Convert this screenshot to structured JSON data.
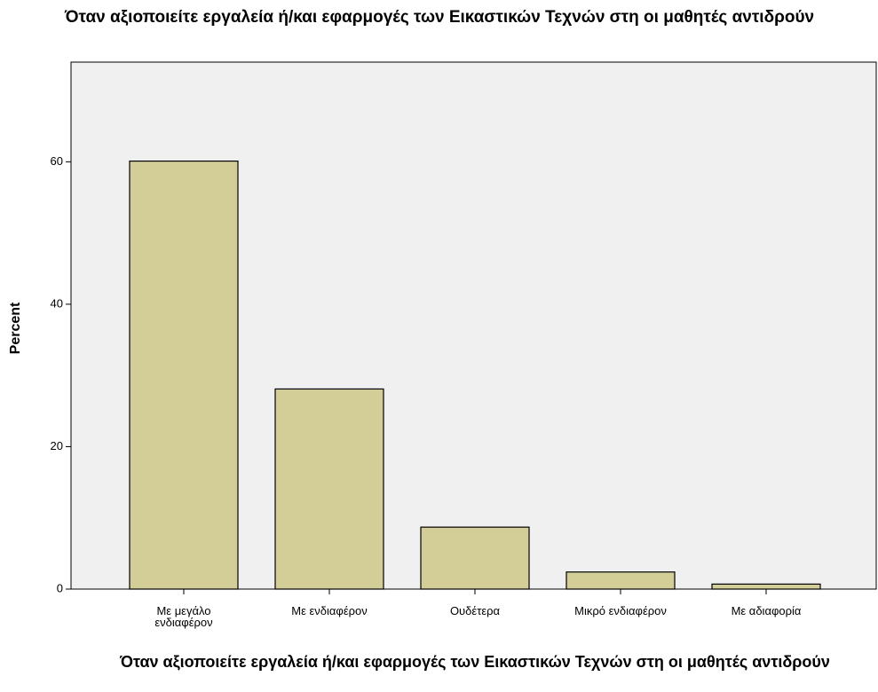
{
  "chart_data": {
    "type": "bar",
    "title": "Όταν αξιοποιείτε εργαλεία ή/και εφαρμογές των Εικαστικών Τεχνών στη οι μαθητές αντιδρούν",
    "x_label": "Όταν αξιοποιείτε εργαλεία ή/και εφαρμογές των Εικαστικών Τεχνών στη οι μαθητές αντιδρούν",
    "y_label": "Percent",
    "categories": [
      "Με μεγάλο ενδιαφέρον",
      "Με ενδιαφέρον",
      "Ουδέτερα",
      "Μικρό ενδιαφέρον",
      "Με αδιαφορία"
    ],
    "values": [
      60.1,
      28.1,
      8.7,
      2.4,
      0.7
    ],
    "color": "#d3ce97",
    "ylim": [
      0,
      74
    ],
    "yticks": [
      0,
      20,
      40,
      60
    ],
    "grid": false
  }
}
